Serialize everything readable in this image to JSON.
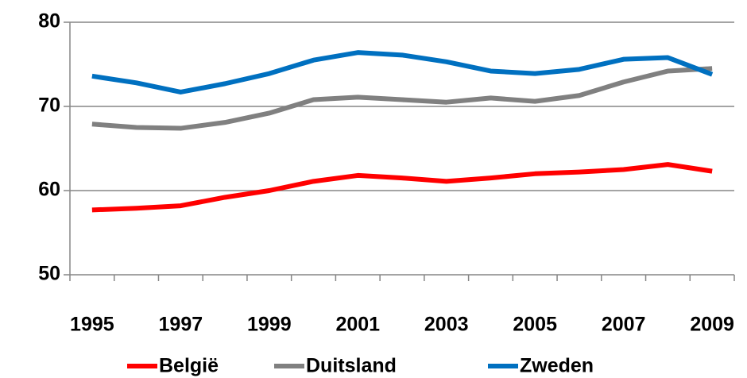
{
  "chart_data": {
    "type": "line",
    "categories": [
      "1995",
      null,
      "1997",
      null,
      "1999",
      null,
      "2001",
      null,
      "2003",
      null,
      "2005",
      null,
      "2007",
      null,
      "2009"
    ],
    "series": [
      {
        "name": "België",
        "color": "#ff0000",
        "values": [
          57.7,
          57.9,
          58.2,
          59.2,
          60.0,
          61.1,
          61.8,
          61.5,
          61.1,
          61.5,
          62.0,
          62.2,
          62.5,
          63.1,
          62.3
        ]
      },
      {
        "name": "Duitsland",
        "color": "#808080",
        "values": [
          67.9,
          67.5,
          67.4,
          68.1,
          69.2,
          70.8,
          71.1,
          70.8,
          70.5,
          71.0,
          70.6,
          71.3,
          72.9,
          74.2,
          74.5
        ]
      },
      {
        "name": "Zweden",
        "color": "#0070c0",
        "values": [
          73.6,
          72.8,
          71.7,
          72.7,
          73.9,
          75.5,
          76.4,
          76.1,
          75.3,
          74.2,
          73.9,
          74.4,
          75.6,
          75.8,
          73.8
        ]
      }
    ],
    "ylim": [
      50,
      80
    ],
    "yticks": [
      50,
      60,
      70,
      80
    ],
    "grid": true,
    "legend": "bottom"
  }
}
